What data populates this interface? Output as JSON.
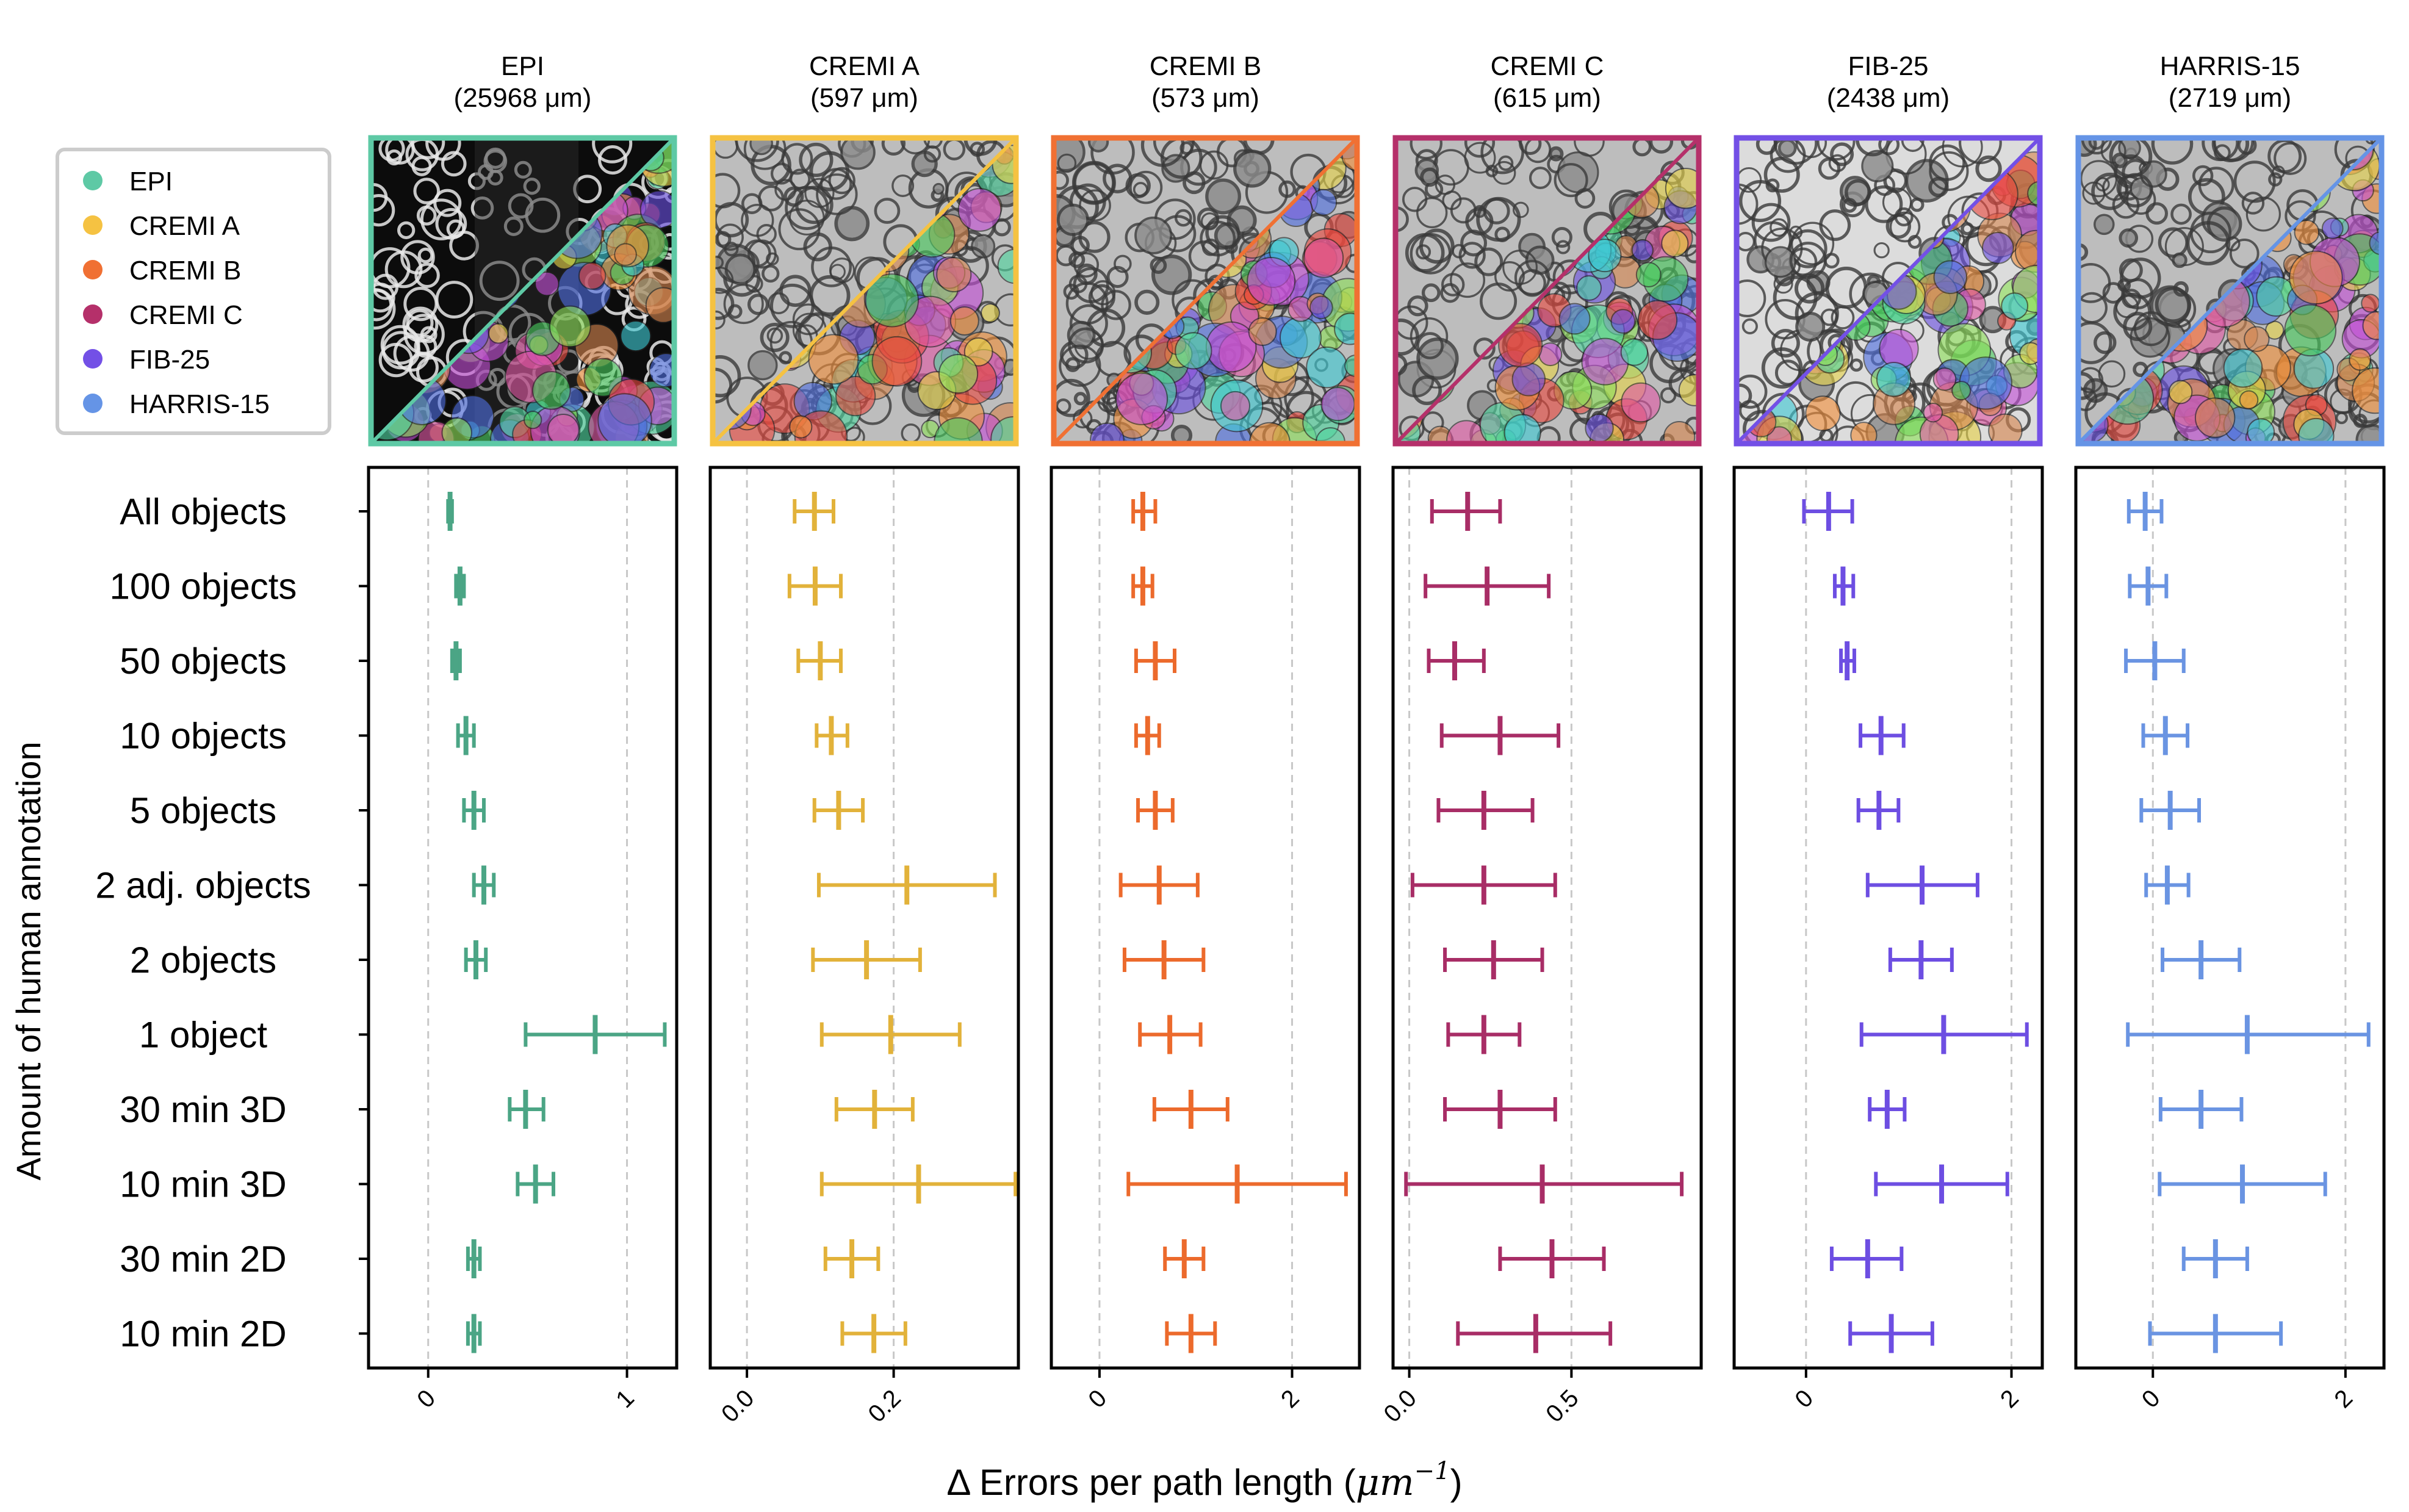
{
  "figure": {
    "ylabel": "Amount of human annotation",
    "xlabel_prefix": "Δ Errors per path length (",
    "xlabel_unit": "μm",
    "xlabel_exp": "−1",
    "xlabel_suffix": ")",
    "legend": {
      "placement": "top-left",
      "entries": [
        {
          "label": "EPI",
          "color": "#5ec9a5"
        },
        {
          "label": "CREMI A",
          "color": "#f5c242"
        },
        {
          "label": "CREMI B",
          "color": "#f07033"
        },
        {
          "label": "CREMI C",
          "color": "#b5306a"
        },
        {
          "label": "FIB-25",
          "color": "#7350e6"
        },
        {
          "label": "HARRIS-15",
          "color": "#6594e6"
        }
      ]
    }
  },
  "chart_data": {
    "type": "scatter",
    "orientation": "horizontal-errorbar",
    "categories": [
      "All objects",
      "100 objects",
      "50 objects",
      "10 objects",
      "5 objects",
      "2 adj. objects",
      "2 objects",
      "1 object",
      "30 min 3D",
      "10 min 3D",
      "30 min 2D",
      "10 min 2D"
    ],
    "grid": {
      "x": true,
      "y": false,
      "style": "dashed"
    },
    "panels": [
      {
        "title": "EPI",
        "subtitle": "(25968 μm)",
        "color": "#4ba585",
        "frame_color": "#5ec9a5",
        "thumb": "fluor",
        "xlim": [
          -0.3,
          1.25
        ],
        "xticks": [
          0,
          1
        ],
        "xtick_labels": [
          "0",
          "1"
        ],
        "points": [
          {
            "mean": 0.11,
            "lo": 0.1,
            "hi": 0.12
          },
          {
            "mean": 0.16,
            "lo": 0.14,
            "hi": 0.18
          },
          {
            "mean": 0.14,
            "lo": 0.12,
            "hi": 0.16
          },
          {
            "mean": 0.19,
            "lo": 0.15,
            "hi": 0.23
          },
          {
            "mean": 0.23,
            "lo": 0.18,
            "hi": 0.28
          },
          {
            "mean": 0.28,
            "lo": 0.23,
            "hi": 0.33
          },
          {
            "mean": 0.24,
            "lo": 0.19,
            "hi": 0.29
          },
          {
            "mean": 0.84,
            "lo": 0.49,
            "hi": 1.19
          },
          {
            "mean": 0.49,
            "lo": 0.41,
            "hi": 0.58
          },
          {
            "mean": 0.54,
            "lo": 0.45,
            "hi": 0.63
          },
          {
            "mean": 0.23,
            "lo": 0.2,
            "hi": 0.26
          },
          {
            "mean": 0.23,
            "lo": 0.2,
            "hi": 0.26
          }
        ]
      },
      {
        "title": "CREMI A",
        "subtitle": "(597 μm)",
        "color": "#e2b23a",
        "frame_color": "#f5c242",
        "thumb": "em",
        "xlim": [
          -0.05,
          0.37
        ],
        "xticks": [
          0.0,
          0.2
        ],
        "xtick_labels": [
          "0.0",
          "0.2"
        ],
        "points": [
          {
            "mean": 0.092,
            "lo": 0.065,
            "hi": 0.118
          },
          {
            "mean": 0.093,
            "lo": 0.058,
            "hi": 0.128
          },
          {
            "mean": 0.1,
            "lo": 0.07,
            "hi": 0.128
          },
          {
            "mean": 0.115,
            "lo": 0.095,
            "hi": 0.137
          },
          {
            "mean": 0.125,
            "lo": 0.092,
            "hi": 0.158
          },
          {
            "mean": 0.218,
            "lo": 0.098,
            "hi": 0.338
          },
          {
            "mean": 0.163,
            "lo": 0.09,
            "hi": 0.236
          },
          {
            "mean": 0.196,
            "lo": 0.102,
            "hi": 0.29
          },
          {
            "mean": 0.174,
            "lo": 0.122,
            "hi": 0.226
          },
          {
            "mean": 0.234,
            "lo": 0.102,
            "hi": 0.366
          },
          {
            "mean": 0.143,
            "lo": 0.107,
            "hi": 0.179
          },
          {
            "mean": 0.173,
            "lo": 0.13,
            "hi": 0.216
          }
        ]
      },
      {
        "title": "CREMI B",
        "subtitle": "(573 μm)",
        "color": "#ec6a2c",
        "frame_color": "#f07033",
        "thumb": "em",
        "xlim": [
          -0.5,
          2.7
        ],
        "xticks": [
          0,
          2
        ],
        "xtick_labels": [
          "0",
          "2"
        ],
        "points": [
          {
            "mean": 0.45,
            "lo": 0.35,
            "hi": 0.58
          },
          {
            "mean": 0.45,
            "lo": 0.35,
            "hi": 0.55
          },
          {
            "mean": 0.58,
            "lo": 0.38,
            "hi": 0.78
          },
          {
            "mean": 0.5,
            "lo": 0.38,
            "hi": 0.62
          },
          {
            "mean": 0.58,
            "lo": 0.4,
            "hi": 0.76
          },
          {
            "mean": 0.62,
            "lo": 0.22,
            "hi": 1.02
          },
          {
            "mean": 0.67,
            "lo": 0.26,
            "hi": 1.08
          },
          {
            "mean": 0.73,
            "lo": 0.42,
            "hi": 1.05
          },
          {
            "mean": 0.95,
            "lo": 0.57,
            "hi": 1.33
          },
          {
            "mean": 1.43,
            "lo": 0.3,
            "hi": 2.56
          },
          {
            "mean": 0.88,
            "lo": 0.68,
            "hi": 1.08
          },
          {
            "mean": 0.95,
            "lo": 0.7,
            "hi": 1.2
          }
        ]
      },
      {
        "title": "CREMI C",
        "subtitle": "(615 μm)",
        "color": "#a82d66",
        "frame_color": "#b5306a",
        "thumb": "em",
        "xlim": [
          -0.05,
          0.9
        ],
        "xticks": [
          0.0,
          0.5
        ],
        "xtick_labels": [
          "0.0",
          "0.5"
        ],
        "points": [
          {
            "mean": 0.18,
            "lo": 0.07,
            "hi": 0.28
          },
          {
            "mean": 0.24,
            "lo": 0.05,
            "hi": 0.43
          },
          {
            "mean": 0.14,
            "lo": 0.06,
            "hi": 0.23
          },
          {
            "mean": 0.28,
            "lo": 0.1,
            "hi": 0.46
          },
          {
            "mean": 0.23,
            "lo": 0.09,
            "hi": 0.38
          },
          {
            "mean": 0.23,
            "lo": 0.01,
            "hi": 0.45
          },
          {
            "mean": 0.26,
            "lo": 0.11,
            "hi": 0.41
          },
          {
            "mean": 0.23,
            "lo": 0.12,
            "hi": 0.34
          },
          {
            "mean": 0.28,
            "lo": 0.11,
            "hi": 0.45
          },
          {
            "mean": 0.41,
            "lo": -0.01,
            "hi": 0.84
          },
          {
            "mean": 0.44,
            "lo": 0.28,
            "hi": 0.6
          },
          {
            "mean": 0.39,
            "lo": 0.15,
            "hi": 0.62
          }
        ]
      },
      {
        "title": "FIB-25",
        "subtitle": "(2438 μm)",
        "color": "#6d4ee2",
        "frame_color": "#7350e6",
        "thumb": "em-bright",
        "xlim": [
          -0.7,
          2.3
        ],
        "xticks": [
          0,
          2
        ],
        "xtick_labels": [
          "0",
          "2"
        ],
        "points": [
          {
            "mean": 0.22,
            "lo": -0.02,
            "hi": 0.45
          },
          {
            "mean": 0.36,
            "lo": 0.28,
            "hi": 0.46
          },
          {
            "mean": 0.4,
            "lo": 0.34,
            "hi": 0.47
          },
          {
            "mean": 0.73,
            "lo": 0.53,
            "hi": 0.95
          },
          {
            "mean": 0.71,
            "lo": 0.51,
            "hi": 0.9
          },
          {
            "mean": 1.13,
            "lo": 0.6,
            "hi": 1.67
          },
          {
            "mean": 1.12,
            "lo": 0.82,
            "hi": 1.42
          },
          {
            "mean": 1.34,
            "lo": 0.54,
            "hi": 2.15
          },
          {
            "mean": 0.79,
            "lo": 0.62,
            "hi": 0.96
          },
          {
            "mean": 1.32,
            "lo": 0.68,
            "hi": 1.96
          },
          {
            "mean": 0.6,
            "lo": 0.25,
            "hi": 0.93
          },
          {
            "mean": 0.83,
            "lo": 0.43,
            "hi": 1.23
          }
        ]
      },
      {
        "title": "HARRIS-15",
        "subtitle": "(2719 μm)",
        "color": "#6a94e2",
        "frame_color": "#6594e6",
        "thumb": "em",
        "xlim": [
          -0.8,
          2.4
        ],
        "xticks": [
          0,
          2
        ],
        "xtick_labels": [
          "0",
          "2"
        ],
        "points": [
          {
            "mean": -0.08,
            "lo": -0.25,
            "hi": 0.09
          },
          {
            "mean": -0.05,
            "lo": -0.24,
            "hi": 0.14
          },
          {
            "mean": 0.02,
            "lo": -0.28,
            "hi": 0.32
          },
          {
            "mean": 0.13,
            "lo": -0.1,
            "hi": 0.36
          },
          {
            "mean": 0.18,
            "lo": -0.12,
            "hi": 0.48
          },
          {
            "mean": 0.15,
            "lo": -0.07,
            "hi": 0.37
          },
          {
            "mean": 0.5,
            "lo": 0.1,
            "hi": 0.9
          },
          {
            "mean": 0.98,
            "lo": -0.26,
            "hi": 2.24
          },
          {
            "mean": 0.5,
            "lo": 0.08,
            "hi": 0.92
          },
          {
            "mean": 0.93,
            "lo": 0.07,
            "hi": 1.79
          },
          {
            "mean": 0.65,
            "lo": 0.32,
            "hi": 0.98
          },
          {
            "mean": 0.65,
            "lo": -0.03,
            "hi": 1.33
          }
        ]
      }
    ]
  }
}
